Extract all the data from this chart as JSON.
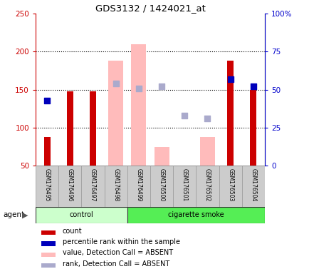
{
  "title": "GDS3132 / 1424021_at",
  "samples": [
    "GSM176495",
    "GSM176496",
    "GSM176497",
    "GSM176498",
    "GSM176499",
    "GSM176500",
    "GSM176501",
    "GSM176502",
    "GSM176503",
    "GSM176504"
  ],
  "count_values": [
    88,
    148,
    148,
    null,
    null,
    null,
    null,
    null,
    188,
    150
  ],
  "percentile_rank": [
    43,
    null,
    null,
    null,
    null,
    null,
    null,
    null,
    57,
    52
  ],
  "absent_value": [
    null,
    null,
    null,
    188,
    210,
    75,
    null,
    88,
    null,
    null
  ],
  "absent_rank": [
    null,
    null,
    null,
    54,
    51,
    52,
    33,
    31,
    null,
    null
  ],
  "ylim_left": [
    50,
    250
  ],
  "ylim_right": [
    0,
    100
  ],
  "yticks_left": [
    50,
    100,
    150,
    200,
    250
  ],
  "yticks_right": [
    0,
    25,
    50,
    75,
    100
  ],
  "ytick_labels_right": [
    "0",
    "25",
    "50",
    "75",
    "100%"
  ],
  "color_count": "#cc0000",
  "color_rank": "#0000bb",
  "color_absent_value": "#ffbbbb",
  "color_absent_rank": "#aaaacc",
  "color_control_bg": "#ccffcc",
  "color_smoke_bg": "#55ee55",
  "color_axis_left": "#cc0000",
  "color_axis_right": "#0000cc",
  "bar_width": 0.5,
  "legend_items": [
    {
      "color": "#cc0000",
      "label": "count"
    },
    {
      "color": "#0000bb",
      "label": "percentile rank within the sample"
    },
    {
      "color": "#ffbbbb",
      "label": "value, Detection Call = ABSENT"
    },
    {
      "color": "#aaaacc",
      "label": "rank, Detection Call = ABSENT"
    }
  ]
}
